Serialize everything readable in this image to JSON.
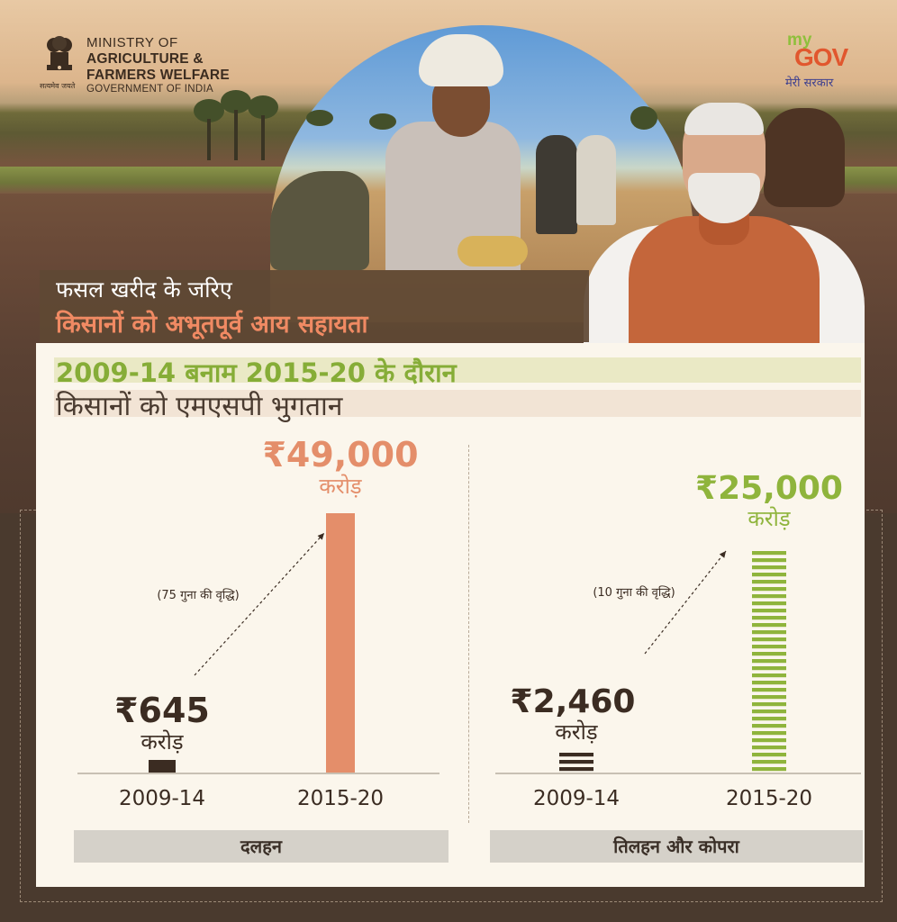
{
  "header": {
    "ministry_line1": "MINISTRY OF",
    "ministry_line2": "AGRICULTURE &",
    "ministry_line3": "FARMERS WELFARE",
    "ministry_line4": "GOVERNMENT OF INDIA",
    "emblem_motto": "सत्यमेव जयते",
    "mygov_my": "my",
    "mygov_gov": "GOV",
    "mygov_tagline": "मेरी सरकार"
  },
  "headline": {
    "line1": "फसल खरीद के जरिए",
    "line2": "किसानों को अभूतपूर्व आय सहायता"
  },
  "colors": {
    "accent_orange": "#e48e6a",
    "accent_green": "#8fb43c",
    "dark_brown": "#3b2c22"
  },
  "chart_data": [
    {
      "type": "bar",
      "title": "2009-14 बनाम 2015-20 के दौरान",
      "subtitle": "किसानों को एमएसपी भुगतान",
      "category_label": "दलहन",
      "categories": [
        "2009-14",
        "2015-20"
      ],
      "values": [
        645,
        49000
      ],
      "value_labels": [
        "₹645",
        "₹49,000"
      ],
      "unit": "करोड़",
      "annotation": "(75 गुना की वृद्धि)",
      "bar_colors": [
        "#3b2c22",
        "#e48e6a"
      ],
      "bar_style": [
        "solid",
        "solid"
      ]
    },
    {
      "type": "bar",
      "category_label": "तिलहन और कोपरा",
      "categories": [
        "2009-14",
        "2015-20"
      ],
      "values": [
        2460,
        25000
      ],
      "value_labels": [
        "₹2,460",
        "₹25,000"
      ],
      "unit": "करोड़",
      "annotation": "(10 गुना की वृद्धि)",
      "bar_colors": [
        "#3b2c22",
        "#8fb43c"
      ],
      "bar_style": [
        "striped",
        "striped"
      ]
    }
  ]
}
